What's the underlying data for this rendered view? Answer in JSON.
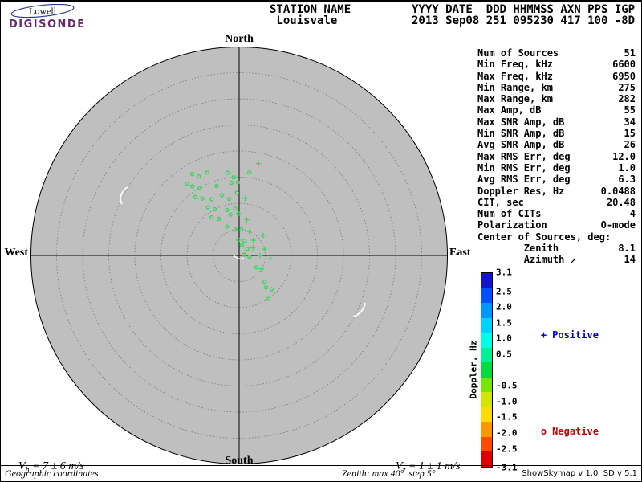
{
  "logo": {
    "brand": "Lowell",
    "product": "DIGISONDE",
    "product_color": "#6b2a70",
    "swoosh_color": "#2a3b8f"
  },
  "header": {
    "labels": [
      "STATION NAME",
      "YYYY DATE",
      "DDD",
      "HHMMSS",
      "AXN",
      "PPS",
      "IGP"
    ],
    "values": [
      "Louisvale",
      "2013 Sep08",
      "251",
      "095230",
      "417",
      "100",
      "-8D"
    ]
  },
  "compass": {
    "north": "North",
    "south": "South",
    "west": "West",
    "east": "East"
  },
  "stats": {
    "rows": [
      {
        "label": "Num of Sources",
        "value": "51"
      },
      {
        "label": "Min Freq, kHz",
        "value": "6600"
      },
      {
        "label": "Max Freq, kHz",
        "value": "6950"
      },
      {
        "label": "Min Range, km",
        "value": "275"
      },
      {
        "label": "Max Range, km",
        "value": "282"
      },
      {
        "label": "Max Amp, dB",
        "value": "55"
      },
      {
        "label": "Max SNR Amp, dB",
        "value": "34"
      },
      {
        "label": "Min SNR Amp, dB",
        "value": "15"
      },
      {
        "label": "Avg SNR Amp, dB",
        "value": "26"
      },
      {
        "label": "Max RMS Err, deg",
        "value": "12.0"
      },
      {
        "label": "Min RMS Err, deg",
        "value": "1.0"
      },
      {
        "label": "Avg RMS Err, deg",
        "value": "6.3"
      },
      {
        "label": "Doppler Res, Hz",
        "value": "0.0488"
      },
      {
        "label": "CIT, sec",
        "value": "20.48"
      },
      {
        "label": "Num of CITs",
        "value": "4"
      },
      {
        "label": "Polarization",
        "value": "O-mode"
      },
      {
        "label": "Center of Sources, deg:",
        "value": ""
      },
      {
        "label": "        Zenith",
        "value": "8.1"
      },
      {
        "label": "        Azimuth ↗",
        "value": "14"
      }
    ]
  },
  "colorbar": {
    "title": "Doppler, Hz",
    "range": [
      -3.1,
      3.1
    ],
    "ticks": [
      "3.1",
      "2.5",
      "2.0",
      "1.5",
      "1.0",
      "0.5",
      "-0.5",
      "-1.0",
      "-1.5",
      "-2.0",
      "-2.5",
      "-3.1"
    ],
    "colors": [
      "#1414c8",
      "#0050ff",
      "#0096ff",
      "#00d2ff",
      "#00ffe6",
      "#00f096",
      "#00dc3c",
      "#78e600",
      "#d2e600",
      "#ffdc00",
      "#ff9600",
      "#ff4b00",
      "#dc0000"
    ],
    "legend": {
      "positive_marker": "+",
      "positive_label": "Positive",
      "positive_color": "#0000cd",
      "negative_marker": "o",
      "negative_label": "Negative",
      "negative_color": "#cd0000"
    }
  },
  "velocities": {
    "vh": {
      "sym": "V",
      "sub": "h",
      "rest": " = 7 ± 6 m/s"
    },
    "vz": {
      "sym": "V",
      "sub": "z",
      "rest": " = 1 ± 1 m/s"
    }
  },
  "footer": {
    "coordinates": "Geographic coordinates",
    "zenith_note": "Zenith: max 40°  step 5°",
    "version": "ShowSkymap v 1.0  SD v 5.1"
  },
  "chart_data": {
    "type": "scatter",
    "projection": "polar skymap: azimuth deg clockwise from North, zenith deg radial",
    "zenith_max_deg": 40,
    "zenith_step_deg": 5,
    "plot_bg": "#bfbfbf",
    "grid_color": "#858585",
    "point_color": "#3cd65c",
    "points": [
      [
        330,
        18,
        "o"
      ],
      [
        339,
        17,
        "o"
      ],
      [
        352,
        16,
        "o"
      ],
      [
        356,
        15,
        "o"
      ],
      [
        12,
        18,
        "+"
      ],
      [
        7,
        16,
        "o"
      ],
      [
        324,
        17,
        "o"
      ],
      [
        326,
        16,
        "o"
      ],
      [
        330,
        15,
        "o"
      ],
      [
        342,
        14,
        "o"
      ],
      [
        354,
        14,
        "o"
      ],
      [
        359,
        14,
        "o"
      ],
      [
        323,
        14,
        "o"
      ],
      [
        327,
        13,
        "o"
      ],
      [
        334,
        12,
        "o"
      ],
      [
        344,
        12,
        "o"
      ],
      [
        358,
        12,
        "o"
      ],
      [
        6,
        11,
        "+"
      ],
      [
        327,
        11,
        "o"
      ],
      [
        332,
        10,
        "o"
      ],
      [
        345,
        9,
        "o"
      ],
      [
        355,
        9,
        "o"
      ],
      [
        324,
        9,
        "o"
      ],
      [
        331,
        8,
        "o"
      ],
      [
        348,
        8,
        "o"
      ],
      [
        359,
        8,
        "o"
      ],
      [
        12,
        7,
        "+"
      ],
      [
        337,
        6,
        "o"
      ],
      [
        352,
        5,
        "o"
      ],
      [
        5,
        5,
        "o"
      ],
      [
        23,
        5,
        "+"
      ],
      [
        357,
        3,
        "o"
      ],
      [
        20,
        3,
        "o"
      ],
      [
        43,
        4,
        "+"
      ],
      [
        50,
        6,
        "+"
      ],
      [
        15,
        2,
        "o"
      ],
      [
        51,
        2,
        "o"
      ],
      [
        61,
        3,
        "+"
      ],
      [
        76,
        5,
        "+"
      ],
      [
        81,
        1,
        "o"
      ],
      [
        98,
        2,
        "o"
      ],
      [
        90,
        4,
        "+"
      ],
      [
        96,
        6,
        "+"
      ],
      [
        125,
        4,
        "o"
      ],
      [
        121,
        5,
        "+"
      ],
      [
        136,
        7,
        "o"
      ],
      [
        136,
        9,
        "o"
      ],
      [
        146,
        10,
        "o"
      ],
      [
        333,
        17,
        "o"
      ],
      [
        350,
        11,
        "o"
      ],
      [
        140,
        8,
        "o"
      ]
    ]
  }
}
